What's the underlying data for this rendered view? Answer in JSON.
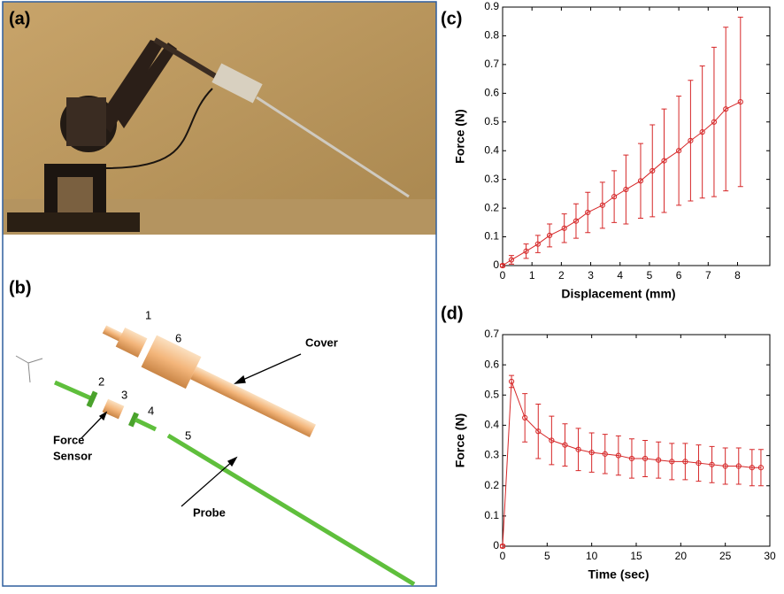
{
  "panels": {
    "a": "(a)",
    "b": "(b)"
  },
  "diagram": {
    "part_numbers": [
      "1",
      "2",
      "3",
      "4",
      "5",
      "6"
    ],
    "cover": "Cover",
    "force_sensor": [
      "Force",
      "Sensor"
    ],
    "probe": "Probe"
  },
  "chart_data": [
    {
      "type": "line",
      "panel_label": "(c)",
      "x_label": "Displacement (mm)",
      "y_label": "Force (N)",
      "x": [
        0,
        0.3,
        0.8,
        1.2,
        1.6,
        2.1,
        2.5,
        2.9,
        3.4,
        3.8,
        4.2,
        4.7,
        5.1,
        5.5,
        6.0,
        6.4,
        6.8,
        7.2,
        7.6,
        8.1
      ],
      "series": [
        {
          "color": "#d62728",
          "values": [
            0,
            0.02,
            0.05,
            0.075,
            0.105,
            0.13,
            0.155,
            0.185,
            0.21,
            0.24,
            0.265,
            0.295,
            0.33,
            0.365,
            0.4,
            0.435,
            0.465,
            0.5,
            0.545,
            0.57
          ],
          "errors": [
            0.005,
            0.015,
            0.025,
            0.03,
            0.04,
            0.05,
            0.06,
            0.07,
            0.08,
            0.09,
            0.12,
            0.13,
            0.16,
            0.18,
            0.19,
            0.21,
            0.23,
            0.26,
            0.285,
            0.295
          ]
        }
      ],
      "xlim": [
        0,
        9.1
      ],
      "xticks": [
        0,
        1,
        2,
        3,
        4,
        5,
        6,
        7,
        8
      ],
      "ylim": [
        0,
        0.9
      ],
      "yticks": [
        0,
        0.1,
        0.2,
        0.3,
        0.4,
        0.5,
        0.6,
        0.7,
        0.8,
        0.9
      ]
    },
    {
      "type": "line",
      "panel_label": "(d)",
      "x_label": "Time (sec)",
      "y_label": "Force (N)",
      "x": [
        0,
        1,
        2.5,
        4,
        5.5,
        7,
        8.5,
        10,
        11.5,
        13,
        14.5,
        16,
        17.5,
        19,
        20.5,
        22,
        23.5,
        25,
        26.5,
        28,
        29
      ],
      "series": [
        {
          "color": "#d62728",
          "values": [
            0,
            0.545,
            0.425,
            0.38,
            0.35,
            0.335,
            0.32,
            0.31,
            0.305,
            0.3,
            0.29,
            0.29,
            0.285,
            0.28,
            0.28,
            0.275,
            0.27,
            0.265,
            0.265,
            0.26,
            0.26
          ],
          "errors": [
            0.005,
            0.02,
            0.08,
            0.09,
            0.08,
            0.07,
            0.07,
            0.065,
            0.065,
            0.065,
            0.065,
            0.06,
            0.06,
            0.06,
            0.06,
            0.06,
            0.06,
            0.06,
            0.06,
            0.06,
            0.06
          ]
        }
      ],
      "xlim": [
        0,
        30
      ],
      "xticks": [
        0,
        5,
        10,
        15,
        20,
        25,
        30
      ],
      "ylim": [
        0,
        0.7
      ],
      "yticks": [
        0,
        0.1,
        0.2,
        0.3,
        0.4,
        0.5,
        0.6,
        0.7
      ]
    }
  ]
}
